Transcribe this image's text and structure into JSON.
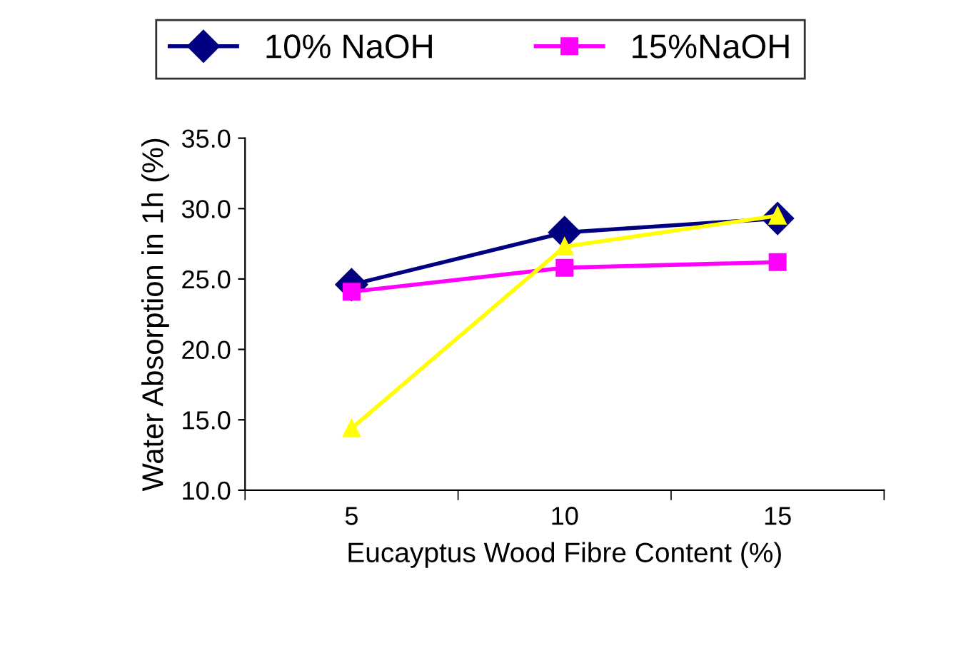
{
  "chart_data": {
    "type": "line",
    "xlabel": "Eucayptus Wood Fibre Content (%)",
    "ylabel": "Water Absorption in 1h (%)",
    "categories": [
      "5",
      "10",
      "15"
    ],
    "series": [
      {
        "name": "10% NaOH",
        "color": "#000080",
        "marker": "diamond",
        "values": [
          24.6,
          28.3,
          29.3
        ]
      },
      {
        "name": "15%NaOH",
        "color": "#ff00ff",
        "marker": "square",
        "values": [
          24.1,
          25.8,
          26.2
        ]
      },
      {
        "color": "#ffff00",
        "marker": "triangle",
        "values": [
          14.4,
          27.3,
          29.5
        ]
      }
    ],
    "ylim": [
      10,
      35
    ],
    "yticks": [
      {
        "value": 10,
        "label": "10.0"
      },
      {
        "value": 15,
        "label": "15.0"
      },
      {
        "value": 20,
        "label": "20.0"
      },
      {
        "value": 25,
        "label": "25.0"
      },
      {
        "value": 30,
        "label": "30.0"
      },
      {
        "value": 35,
        "label": "35.0"
      }
    ],
    "grid": false,
    "legend": "top",
    "line_style": "solid"
  }
}
